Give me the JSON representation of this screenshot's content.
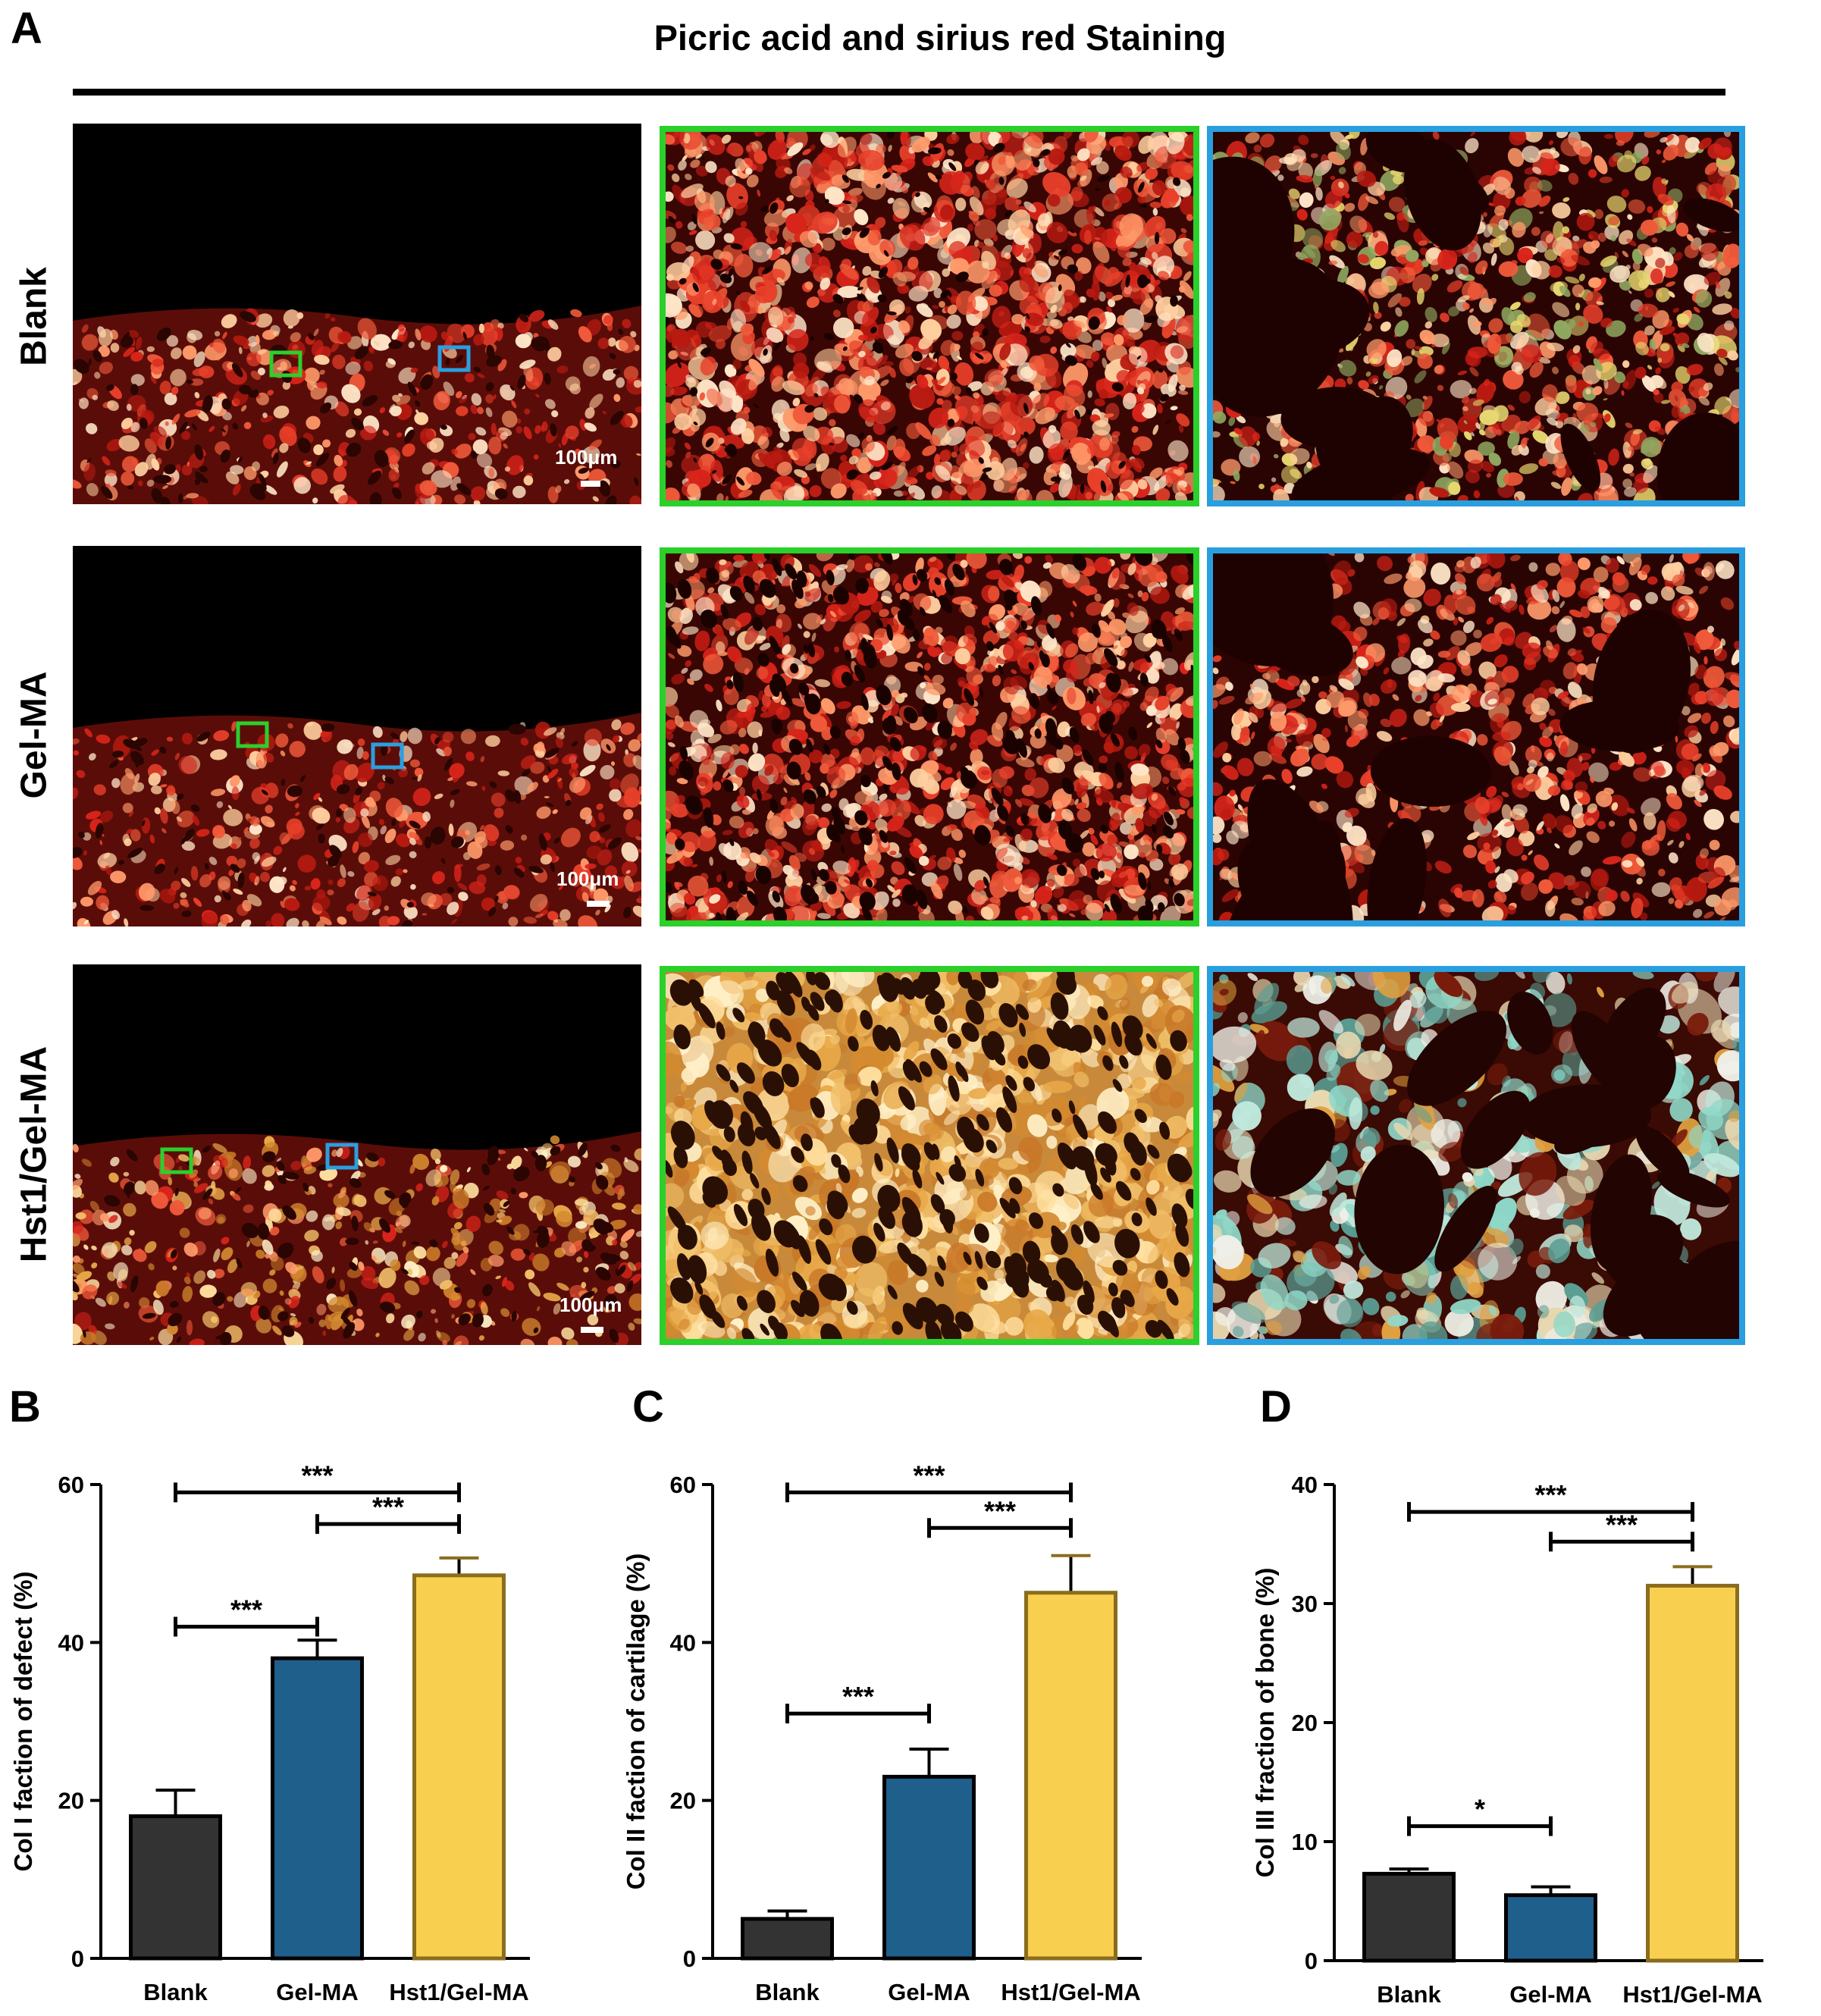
{
  "panel_letters": {
    "a": "A",
    "b": "B",
    "c": "C",
    "d": "D"
  },
  "figure_title": "Picric acid and sirius red Staining",
  "row_labels": [
    "Blank",
    "Gel-MA",
    "Hst1/Gel-MA"
  ],
  "scale_bar_label": "100μm",
  "colors": {
    "blank": "#333333",
    "gelma": "#1f5f8b",
    "hst1": "#f9cf4f",
    "hst1_edge": "#8a6d1e",
    "green_box": "#2bd02b",
    "blue_box": "#2a9fe0"
  },
  "chart_data": [
    {
      "type": "bar",
      "panel": "B",
      "categories": [
        "Blank",
        "Gel-MA",
        "Hst1/Gel-MA"
      ],
      "values": [
        18,
        38,
        48.5
      ],
      "errors": [
        3.3,
        2.3,
        2.2
      ],
      "ylabel": "Col I faction of defect (%)",
      "ylim": [
        0,
        60
      ],
      "yticks": [
        0,
        20,
        40,
        60
      ],
      "significance": [
        {
          "from": 0,
          "to": 2,
          "level": 59,
          "label": "***"
        },
        {
          "from": 1,
          "to": 2,
          "level": 55,
          "label": "***"
        },
        {
          "from": 0,
          "to": 1,
          "level": 42,
          "label": "***"
        }
      ]
    },
    {
      "type": "bar",
      "panel": "C",
      "categories": [
        "Blank",
        "Gel-MA",
        "Hst1/Gel-MA"
      ],
      "values": [
        5,
        23,
        46.3
      ],
      "errors": [
        1,
        3.5,
        4.7
      ],
      "ylabel": "Col II faction of cartilage (%)",
      "ylim": [
        0,
        60
      ],
      "yticks": [
        0,
        20,
        40,
        60
      ],
      "significance": [
        {
          "from": 0,
          "to": 2,
          "level": 59,
          "label": "***"
        },
        {
          "from": 1,
          "to": 2,
          "level": 54.5,
          "label": "***"
        },
        {
          "from": 0,
          "to": 1,
          "level": 31,
          "label": "***"
        }
      ]
    },
    {
      "type": "bar",
      "panel": "D",
      "categories": [
        "Blank",
        "Gel-MA",
        "Hst1/Gel-MA"
      ],
      "values": [
        7.3,
        5.5,
        31.5
      ],
      "errors": [
        0.4,
        0.7,
        1.6
      ],
      "ylabel": "Col III fraction of bone (%)",
      "ylim": [
        0,
        40
      ],
      "yticks": [
        0,
        10,
        20,
        30,
        40
      ],
      "significance": [
        {
          "from": 0,
          "to": 2,
          "level": 37.7,
          "label": "***"
        },
        {
          "from": 1,
          "to": 2,
          "level": 35.2,
          "label": "***"
        },
        {
          "from": 0,
          "to": 1,
          "level": 11.3,
          "label": "*"
        }
      ]
    }
  ]
}
